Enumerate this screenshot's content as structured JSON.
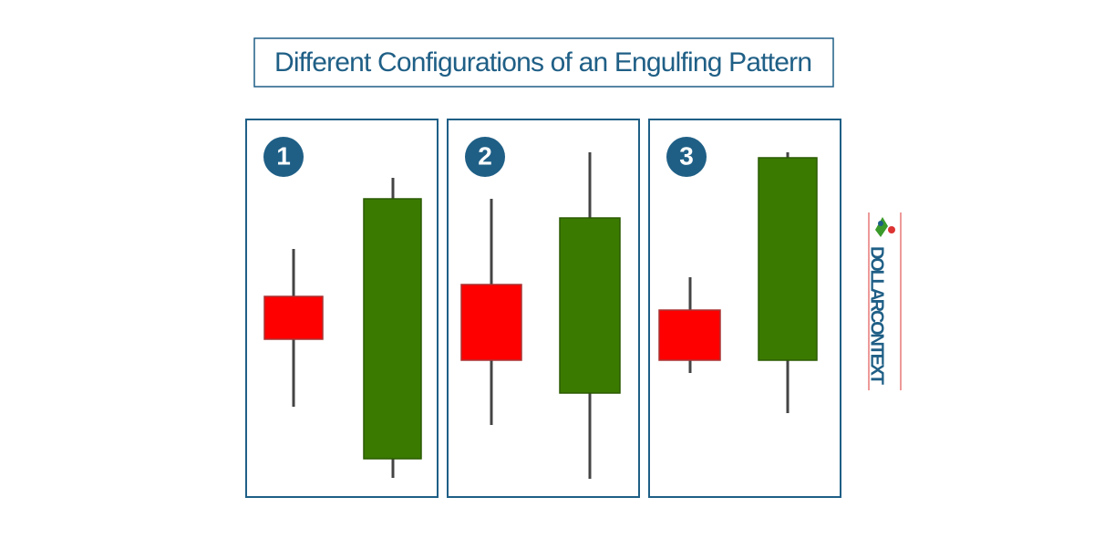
{
  "title": "Different Configurations of an Engulfing Pattern",
  "panels": [
    {
      "label": "1"
    },
    {
      "label": "2"
    },
    {
      "label": "3"
    }
  ],
  "brand": "DOLLARCONTEXT"
}
